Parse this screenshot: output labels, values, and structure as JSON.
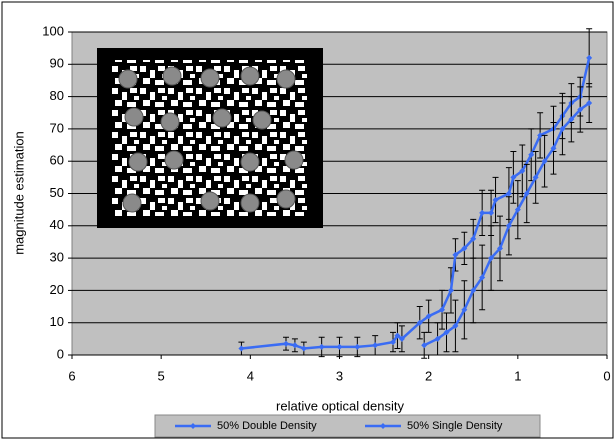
{
  "chart_data": {
    "type": "line",
    "xlabel": "relative optical density",
    "ylabel": "magnitude estimation",
    "xlim": [
      6,
      0
    ],
    "xticks": [
      6,
      5,
      4,
      3,
      2,
      1,
      0
    ],
    "ylim": [
      0,
      100
    ],
    "yticks": [
      0,
      10,
      20,
      30,
      40,
      50,
      60,
      70,
      80,
      90,
      100
    ],
    "grid": true,
    "legend": "bottom",
    "background": "#c0c0c0",
    "series": [
      {
        "name": "50% Double Density",
        "color": "#3a6cf4",
        "x": [
          4.1,
          3.6,
          3.5,
          3.4,
          3.2,
          3.0,
          2.8,
          2.6,
          2.4,
          2.35,
          2.3,
          2.1,
          2.0,
          1.85,
          1.75,
          1.7,
          1.6,
          1.5,
          1.4,
          1.3,
          1.25,
          1.1,
          1.05,
          0.95,
          0.85,
          0.75,
          0.6,
          0.5,
          0.4,
          0.3,
          0.2
        ],
        "values": [
          2,
          3.5,
          3,
          2,
          2.5,
          2.5,
          2.5,
          3,
          4,
          6,
          5,
          10,
          12,
          14,
          20,
          31,
          33,
          36,
          44,
          44,
          48,
          50,
          55,
          57,
          62,
          68,
          70,
          74,
          78,
          80,
          92
        ],
        "errors": [
          2,
          2,
          2,
          2,
          3,
          3,
          3,
          3,
          3,
          4,
          4,
          5,
          5,
          6,
          7,
          5,
          5,
          6,
          7,
          7,
          7,
          8,
          8,
          8,
          8,
          7,
          7,
          7,
          6,
          6,
          9
        ]
      },
      {
        "name": "50% Single Density",
        "color": "#3a6cf4",
        "x": [
          2.05,
          1.9,
          1.8,
          1.7,
          1.6,
          1.5,
          1.4,
          1.3,
          1.2,
          1.1,
          1.0,
          0.9,
          0.8,
          0.7,
          0.6,
          0.5,
          0.4,
          0.3,
          0.2
        ],
        "values": [
          3,
          5,
          7,
          9,
          14,
          20,
          24,
          30,
          33,
          40,
          45,
          50,
          55,
          60,
          64,
          70,
          73,
          76,
          78
        ],
        "errors": [
          4,
          5,
          6,
          8,
          9,
          10,
          10,
          10,
          10,
          9,
          9,
          9,
          8,
          8,
          8,
          8,
          7,
          7,
          6
        ]
      }
    ]
  }
}
